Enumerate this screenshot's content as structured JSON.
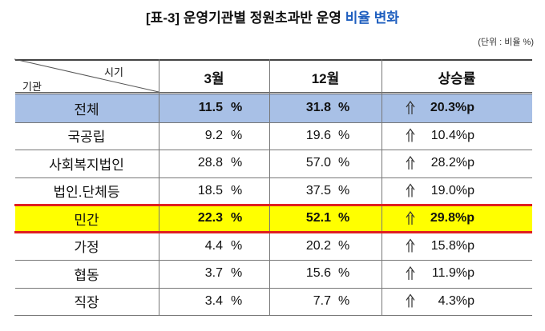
{
  "header": {
    "title_prefix": "[표-3] 운영기관별 정원초과반 운영",
    "title_highlight": "비율 변화",
    "unit": "(단위 : 비율 %)"
  },
  "table": {
    "corner_top": "시기",
    "corner_bottom": "기관",
    "columns": [
      "3월",
      "12월",
      "상승률"
    ],
    "percent_sign": "%",
    "rows": [
      [
        "전체",
        "11.5",
        "31.8",
        "20.3%p"
      ],
      [
        "국공립",
        "9.2",
        "19.6",
        "10.4%p"
      ],
      [
        "사회복지법인",
        "28.8",
        "57.0",
        "28.2%p"
      ],
      [
        "법인.단체등",
        "18.5",
        "37.5",
        "19.0%p"
      ],
      [
        "민간",
        "22.3",
        "52.1",
        "29.8%p"
      ],
      [
        "가정",
        "4.4",
        "20.2",
        "15.8%p"
      ],
      [
        "협동",
        "3.7",
        "15.6",
        "11.9%p"
      ],
      [
        "직장",
        "3.4",
        "7.7",
        "4.3%p"
      ]
    ]
  }
}
